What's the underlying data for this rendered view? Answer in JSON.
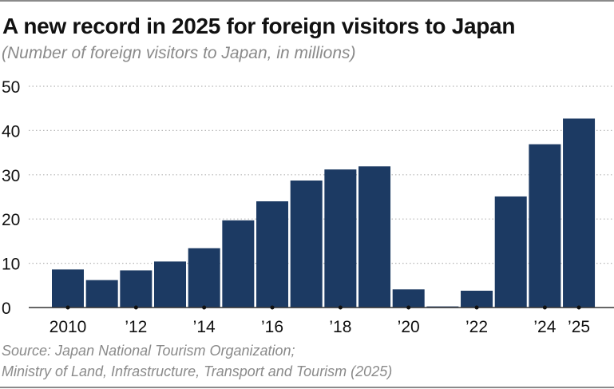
{
  "chart_data": {
    "type": "bar",
    "title": "A new record in 2025 for foreign visitors to Japan",
    "subtitle": "(Number of foreign visitors to Japan, in millions)",
    "xlabel": "",
    "ylabel": "",
    "categories": [
      "2010",
      "2011",
      "2012",
      "2013",
      "2014",
      "2015",
      "2016",
      "2017",
      "2018",
      "2019",
      "2020",
      "2021",
      "2022",
      "2023",
      "2024",
      "2025"
    ],
    "values": [
      8.6,
      6.2,
      8.4,
      10.4,
      13.4,
      19.7,
      24.0,
      28.7,
      31.2,
      31.9,
      4.1,
      0.25,
      3.8,
      25.1,
      36.9,
      42.7
    ],
    "x_tick_labels": [
      {
        "category": "2010",
        "label": "2010"
      },
      {
        "category": "2012",
        "label": "’12"
      },
      {
        "category": "2014",
        "label": "’14"
      },
      {
        "category": "2016",
        "label": "’16"
      },
      {
        "category": "2018",
        "label": "’18"
      },
      {
        "category": "2020",
        "label": "’20"
      },
      {
        "category": "2022",
        "label": "’22"
      },
      {
        "category": "2024",
        "label": "’24"
      },
      {
        "category": "2025",
        "label": "’25"
      }
    ],
    "y_ticks": [
      0,
      10,
      20,
      30,
      40,
      50
    ],
    "ylim": [
      0,
      50
    ],
    "grid": true,
    "bar_color": "#1c3a63"
  },
  "source": {
    "line1": "Source: Japan National Tourism Organization;",
    "line2": "Ministry of Land, Infrastructure, Transport and Tourism (2025)"
  }
}
